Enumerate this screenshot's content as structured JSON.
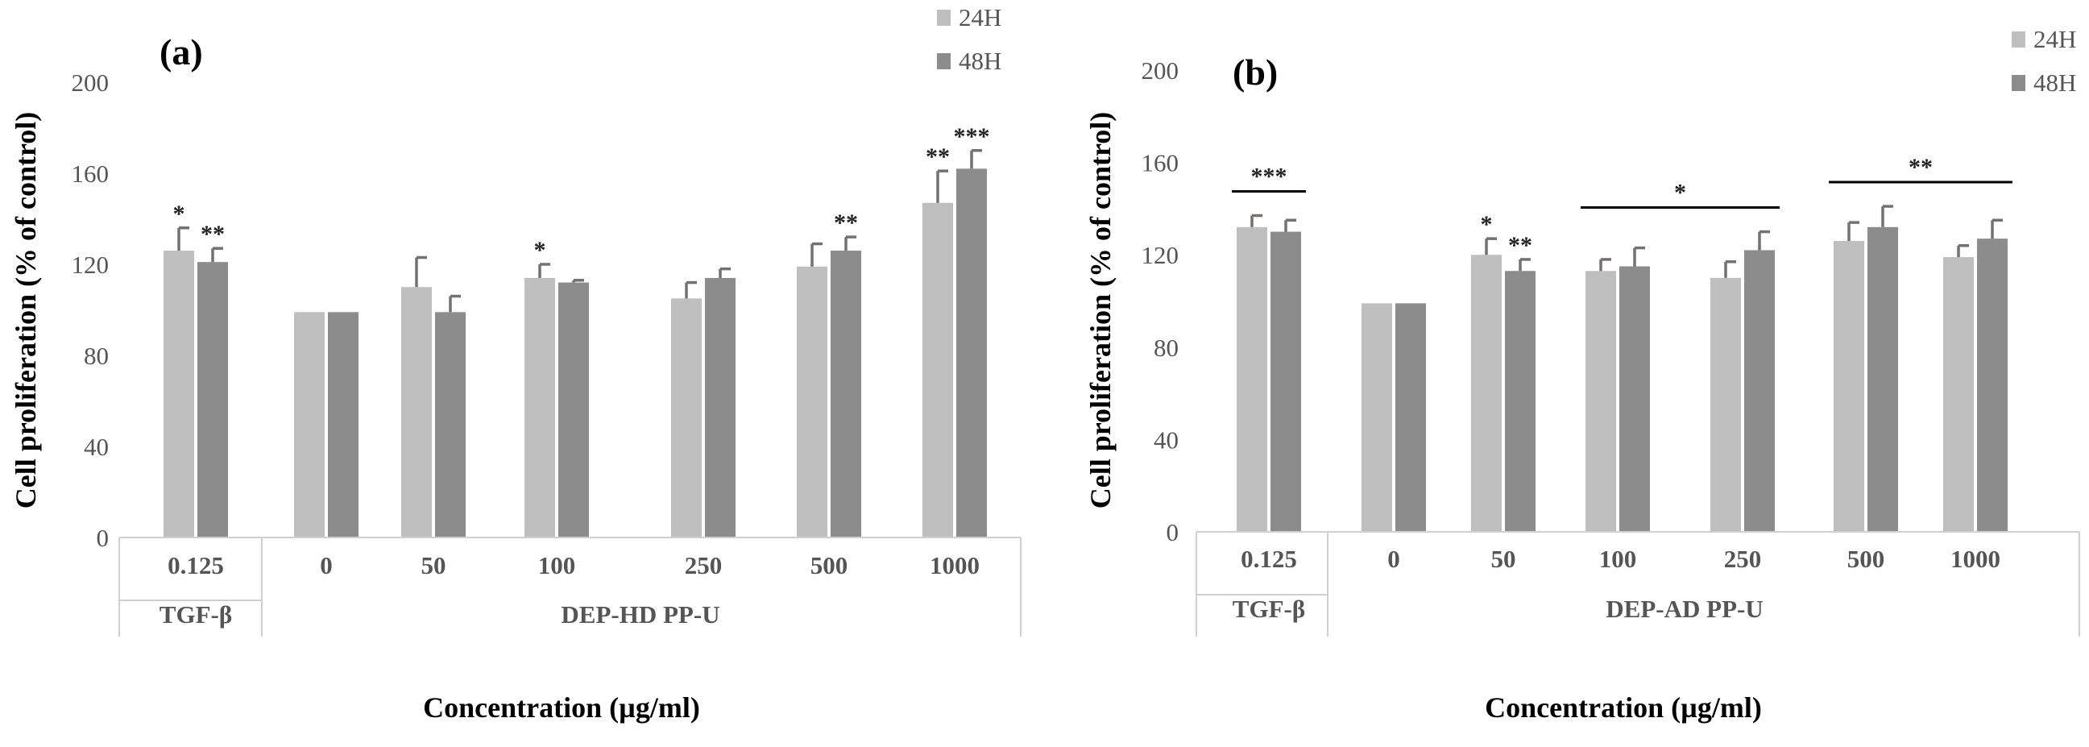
{
  "chart_data": [
    {
      "panel": "(a)",
      "type": "bar",
      "ylabel": "Cell proliferation (% of control)",
      "xlabel": "Concentration (µg/ml)",
      "ylim": [
        0,
        200
      ],
      "yticks": [
        "0",
        "40",
        "80",
        "120",
        "160",
        "200"
      ],
      "categories": [
        "0.125",
        "0",
        "50",
        "100",
        "250",
        "500",
        "1000"
      ],
      "groups": [
        {
          "label": "TGF-β",
          "categories": [
            "0.125"
          ]
        },
        {
          "label": "DEP-HD PP-U",
          "categories": [
            "0",
            "50",
            "100",
            "250",
            "500",
            "1000"
          ]
        }
      ],
      "series": [
        {
          "name": "24H",
          "color": "#bfbfbf",
          "values": [
            126,
            99,
            110,
            114,
            105,
            119,
            147
          ],
          "errors": [
            10,
            0,
            13,
            6,
            7,
            10,
            14
          ],
          "sig": [
            "*",
            "",
            "",
            "*",
            "",
            "",
            "**"
          ]
        },
        {
          "name": "48H",
          "color": "#8c8c8c",
          "values": [
            121,
            99,
            99,
            112,
            114,
            126,
            162
          ],
          "errors": [
            6,
            0,
            7,
            1,
            4,
            6,
            8
          ],
          "sig": [
            "**",
            "",
            "",
            "",
            "",
            "**",
            "***"
          ]
        }
      ],
      "brackets": []
    },
    {
      "panel": "(b)",
      "type": "bar",
      "ylabel": "Cell proliferation (% of control)",
      "xlabel": "Concentration (µg/ml)",
      "ylim": [
        0,
        200
      ],
      "yticks": [
        "0",
        "40",
        "80",
        "120",
        "160",
        "200"
      ],
      "categories": [
        "0.125",
        "0",
        "50",
        "100",
        "250",
        "500",
        "1000"
      ],
      "groups": [
        {
          "label": "TGF-β",
          "categories": [
            "0.125"
          ]
        },
        {
          "label": "DEP-AD PP-U",
          "categories": [
            "0",
            "50",
            "100",
            "250",
            "500",
            "1000"
          ]
        }
      ],
      "series": [
        {
          "name": "24H",
          "color": "#bfbfbf",
          "values": [
            132,
            99,
            120,
            113,
            110,
            126,
            119
          ],
          "errors": [
            5,
            0,
            7,
            5,
            7,
            8,
            5
          ],
          "sig": [
            "",
            "",
            "*",
            "",
            "",
            "",
            ""
          ]
        },
        {
          "name": "48H",
          "color": "#8c8c8c",
          "values": [
            130,
            99,
            113,
            115,
            122,
            132,
            127
          ],
          "errors": [
            5,
            0,
            5,
            8,
            8,
            9,
            8
          ],
          "sig": [
            "",
            "",
            "**",
            "",
            "",
            "",
            ""
          ]
        }
      ],
      "brackets": [
        {
          "from": 0,
          "to": 0,
          "label": "***"
        },
        {
          "from": 3,
          "to": 4,
          "label": "*"
        },
        {
          "from": 5,
          "to": 6,
          "label": "**"
        }
      ]
    }
  ]
}
